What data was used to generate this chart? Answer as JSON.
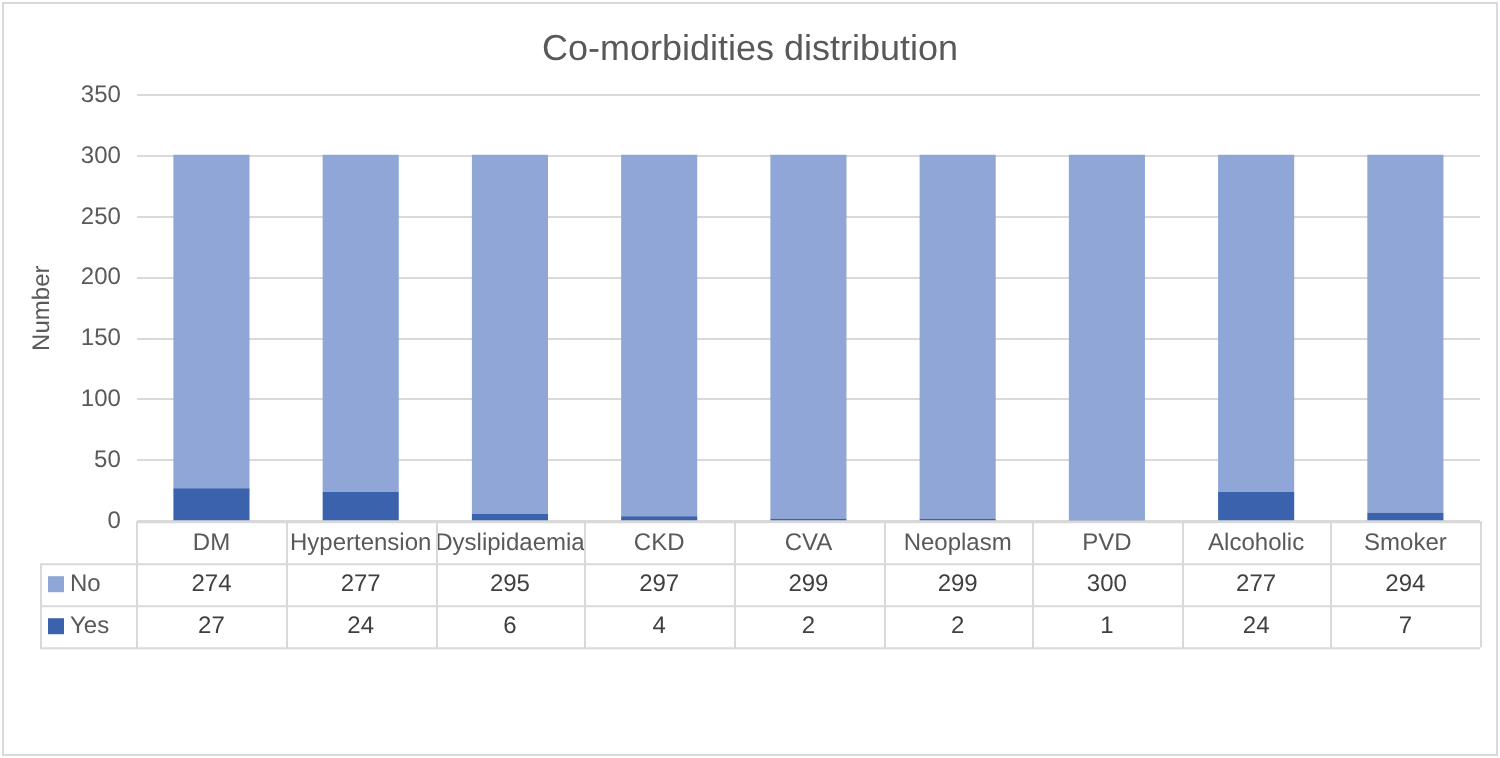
{
  "chart_data": {
    "type": "bar",
    "title": "Co-morbidities distribution",
    "ylabel": "Number",
    "stacked": true,
    "categories": [
      "DM",
      "Hypertension",
      "Dyslipidaemia",
      "CKD",
      "CVA",
      "Neoplasm",
      "PVD",
      "Alcoholic",
      "Smoker"
    ],
    "series": [
      {
        "name": "Yes",
        "color": "#3a62ad",
        "values": [
          27,
          24,
          6,
          4,
          2,
          2,
          1,
          24,
          7
        ]
      },
      {
        "name": "No",
        "color": "#8fa6d6",
        "values": [
          274,
          277,
          295,
          297,
          299,
          299,
          300,
          277,
          294
        ]
      }
    ],
    "ylim": [
      0,
      350
    ],
    "yticks": [
      0,
      50,
      100,
      150,
      200,
      250,
      300,
      350
    ],
    "grid": "y",
    "legend": "bottom",
    "data_labels": true
  }
}
